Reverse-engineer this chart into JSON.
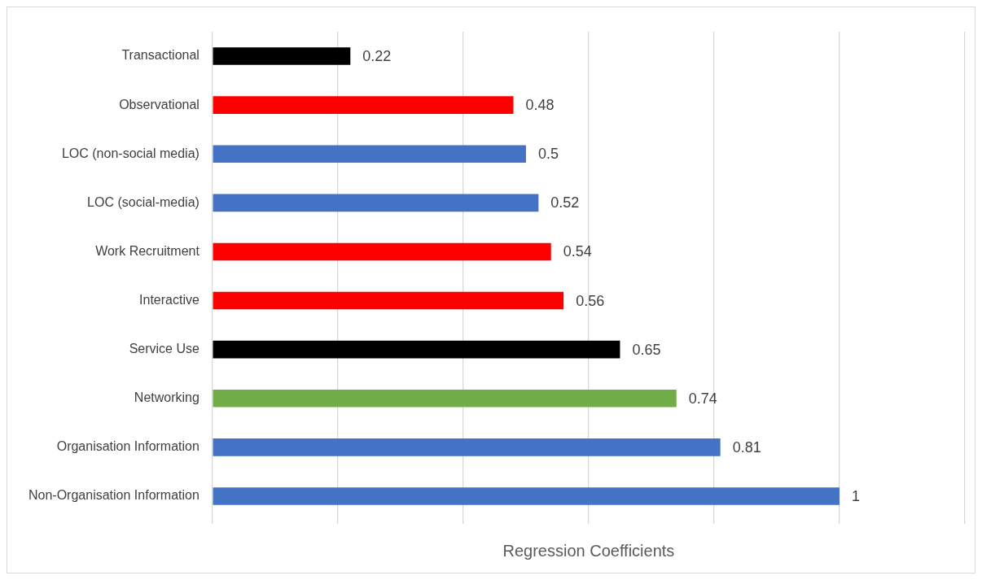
{
  "chart_data": {
    "type": "bar",
    "orientation": "horizontal",
    "xlabel": "Regression Coefficients",
    "categories": [
      "Transactional",
      "Observational",
      "LOC (non-social media)",
      "LOC (social-media)",
      "Work Recruitment",
      "Interactive",
      "Service Use",
      "Networking",
      "Organisation Information",
      "Non-Organisation Information"
    ],
    "values": [
      0.22,
      0.48,
      0.5,
      0.52,
      0.54,
      0.56,
      0.65,
      0.74,
      0.81,
      1
    ],
    "colors": [
      "#000000",
      "#ff0000",
      "#4472c4",
      "#4472c4",
      "#ff0000",
      "#ff0000",
      "#000000",
      "#70ad47",
      "#4472c4",
      "#4472c4"
    ],
    "xlim": [
      0,
      1.2
    ],
    "xticks": [
      {
        "value": 0,
        "label": null
      },
      {
        "value": 0.2,
        "label": null
      },
      {
        "value": 0.4,
        "label": null
      },
      {
        "value": 0.6,
        "label": null
      },
      {
        "value": 0.8,
        "label": null
      },
      {
        "value": 1,
        "label": null
      },
      {
        "value": 1.2,
        "label": null
      }
    ],
    "tick_labels": "y",
    "grid": "x",
    "data_labels": true,
    "legend": false
  }
}
